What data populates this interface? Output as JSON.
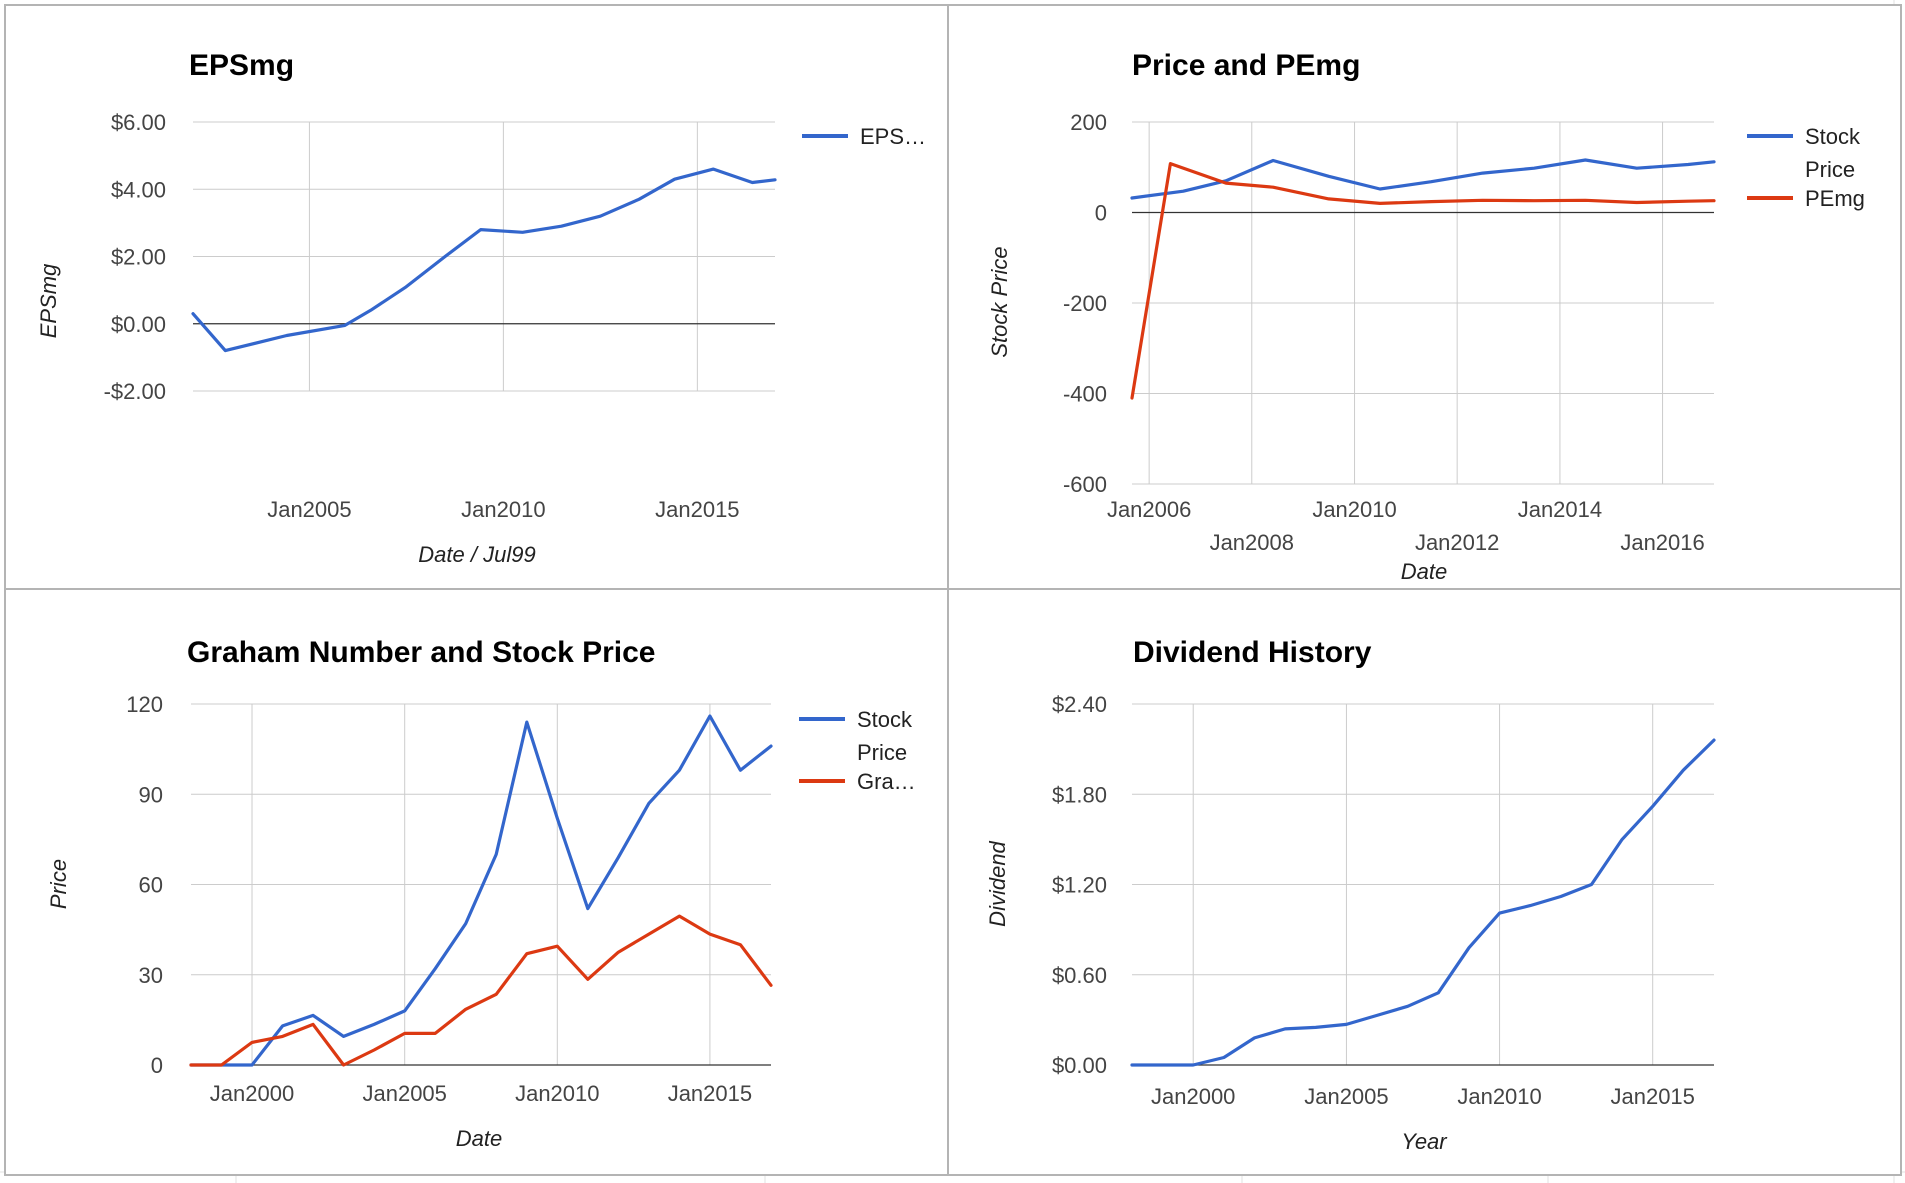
{
  "colors": {
    "blue": "#3366cc",
    "red": "#dc3912",
    "grid": "#cccccc",
    "zero": "#333333",
    "panel_border": "#b4b4b4"
  },
  "chart_data": [
    {
      "type": "line",
      "title": "EPSmg",
      "xlabel": "Date / Jul99",
      "ylabel": "EPSmg",
      "ylim": [
        -2,
        6
      ],
      "xlim": [
        "2002-01-01",
        "2017-01-01"
      ],
      "y_ticks": [
        6,
        4,
        2,
        0,
        -2
      ],
      "y_tick_labels": [
        "$6.00",
        "$4.00",
        "$2.00",
        "$0.00",
        "-$2.00"
      ],
      "x_ticks": [
        "2005-01-01",
        "2010-01-01",
        "2015-01-01"
      ],
      "x_tick_labels": [
        "Jan2005",
        "Jan2010",
        "Jan2015"
      ],
      "grid": true,
      "legend": "right",
      "series": [
        {
          "name": "EPS…",
          "color": "#3366cc",
          "x": [
            "2002-01-01",
            "2002-11-01",
            "2004-06-01",
            "2005-12-01",
            "2006-08-01",
            "2007-07-01",
            "2008-07-01",
            "2009-06-01",
            "2010-07-01",
            "2011-07-01",
            "2012-07-01",
            "2013-07-01",
            "2014-06-01",
            "2015-06-01",
            "2016-06-01",
            "2017-01-01"
          ],
          "y": [
            0.3,
            -0.8,
            -0.35,
            -0.05,
            0.4,
            1.1,
            2.0,
            2.8,
            2.72,
            2.9,
            3.2,
            3.7,
            4.3,
            4.6,
            4.2,
            4.28
          ]
        }
      ]
    },
    {
      "type": "line",
      "title": "Price and PEmg",
      "xlabel": "Date",
      "ylabel": "Stock Price",
      "ylim": [
        -600,
        200
      ],
      "xlim": [
        "2005-09-01",
        "2017-01-01"
      ],
      "y_ticks": [
        200,
        0,
        -200,
        -400,
        -600
      ],
      "y_tick_labels": [
        "200",
        "0",
        "-200",
        "-400",
        "-600"
      ],
      "x_ticks": [
        "2006-01-01",
        "2008-01-01",
        "2010-01-01",
        "2012-01-01",
        "2014-01-01",
        "2016-01-01"
      ],
      "x_tick_labels": [
        "Jan2006",
        "Jan2008",
        "Jan2010",
        "Jan2012",
        "Jan2014",
        "Jan2016"
      ],
      "grid": true,
      "legend": "right",
      "series": [
        {
          "name": "Stock Price",
          "color": "#3366cc",
          "x": [
            "2005-09-01",
            "2006-09-01",
            "2007-07-01",
            "2008-06-01",
            "2009-07-01",
            "2010-07-01",
            "2011-07-01",
            "2012-07-01",
            "2013-07-01",
            "2014-07-01",
            "2015-07-01",
            "2016-07-01",
            "2017-01-01"
          ],
          "y": [
            32,
            47,
            70,
            115,
            80,
            52,
            68,
            87,
            98,
            116,
            98,
            106,
            112
          ]
        },
        {
          "name": "PEmg",
          "color": "#dc3912",
          "x": [
            "2005-09-01",
            "2006-06-01",
            "2007-07-01",
            "2008-06-01",
            "2009-07-01",
            "2010-07-01",
            "2011-07-01",
            "2012-07-01",
            "2013-07-01",
            "2014-07-01",
            "2015-07-01",
            "2016-07-01",
            "2017-01-01"
          ],
          "y": [
            -410,
            108,
            65,
            56,
            30,
            20,
            24,
            27,
            26,
            27,
            22,
            25,
            26
          ]
        }
      ]
    },
    {
      "type": "line",
      "title": "Graham Number and Stock Price",
      "xlabel": "Date",
      "ylabel": "Price",
      "ylim": [
        0,
        120
      ],
      "xlim": [
        "1998-01-01",
        "2017-01-01"
      ],
      "y_ticks": [
        120,
        90,
        60,
        30,
        0
      ],
      "y_tick_labels": [
        "120",
        "90",
        "60",
        "30",
        "0"
      ],
      "x_ticks": [
        "2000-01-01",
        "2005-01-01",
        "2010-01-01",
        "2015-01-01"
      ],
      "x_tick_labels": [
        "Jan2000",
        "Jan2005",
        "Jan2010",
        "Jan2015"
      ],
      "grid": true,
      "legend": "right",
      "series": [
        {
          "name": "Stock Price",
          "color": "#3366cc",
          "x": [
            "1998-01-01",
            "1999-01-01",
            "2000-01-01",
            "2001-01-01",
            "2002-01-01",
            "2003-01-01",
            "2004-01-01",
            "2005-01-01",
            "2006-01-01",
            "2007-01-01",
            "2008-01-01",
            "2009-01-01",
            "2010-01-01",
            "2011-01-01",
            "2012-01-01",
            "2013-01-01",
            "2014-01-01",
            "2015-01-01",
            "2016-01-01",
            "2017-01-01"
          ],
          "y": [
            0,
            0,
            0,
            13,
            16.5,
            9.5,
            13.5,
            18,
            32,
            47,
            70,
            114,
            82,
            52,
            69,
            87,
            98,
            116,
            98,
            106
          ]
        },
        {
          "name": "Gra…",
          "color": "#dc3912",
          "x": [
            "1998-01-01",
            "1999-01-01",
            "2000-01-01",
            "2001-01-01",
            "2002-01-01",
            "2003-01-01",
            "2004-01-01",
            "2005-01-01",
            "2006-01-01",
            "2007-01-01",
            "2008-01-01",
            "2009-01-01",
            "2010-01-01",
            "2011-01-01",
            "2012-01-01",
            "2013-01-01",
            "2014-01-01",
            "2015-01-01",
            "2016-01-01",
            "2017-01-01"
          ],
          "y": [
            0,
            0,
            7.5,
            9.5,
            13.5,
            0,
            5,
            10.5,
            10.5,
            18.5,
            23.5,
            37,
            39.5,
            28.5,
            37.5,
            43.5,
            49.5,
            43.5,
            40,
            26.5
          ]
        }
      ]
    },
    {
      "type": "line",
      "title": "Dividend History",
      "xlabel": "Year",
      "ylabel": "Dividend",
      "ylim": [
        0,
        2.4
      ],
      "xlim": [
        "1998-01-01",
        "2017-01-01"
      ],
      "y_ticks": [
        2.4,
        1.8,
        1.2,
        0.6,
        0
      ],
      "y_tick_labels": [
        "$2.40",
        "$1.80",
        "$1.20",
        "$0.60",
        "$0.00"
      ],
      "x_ticks": [
        "2000-01-01",
        "2005-01-01",
        "2010-01-01",
        "2015-01-01"
      ],
      "x_tick_labels": [
        "Jan2000",
        "Jan2005",
        "Jan2010",
        "Jan2015"
      ],
      "grid": true,
      "legend": "none",
      "series": [
        {
          "color": "#3366cc",
          "x": [
            "1998-01-01",
            "1999-01-01",
            "2000-01-01",
            "2001-01-01",
            "2002-01-01",
            "2003-01-01",
            "2004-01-01",
            "2005-01-01",
            "2006-01-01",
            "2007-01-01",
            "2008-01-01",
            "2009-01-01",
            "2010-01-01",
            "2011-01-01",
            "2012-01-01",
            "2013-01-01",
            "2014-01-01",
            "2015-01-01",
            "2016-01-01",
            "2017-01-01"
          ],
          "y": [
            0,
            0,
            0,
            0.05,
            0.18,
            0.24,
            0.25,
            0.27,
            0.33,
            0.39,
            0.48,
            0.78,
            1.01,
            1.06,
            1.12,
            1.2,
            1.5,
            1.72,
            1.96,
            2.16
          ]
        }
      ]
    }
  ]
}
